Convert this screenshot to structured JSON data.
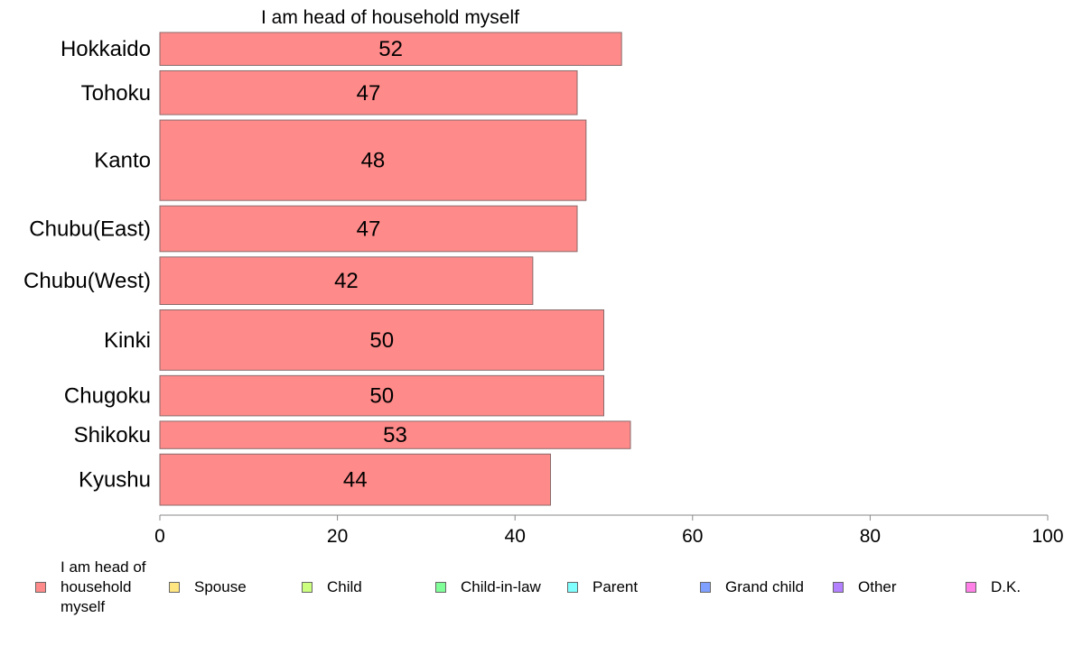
{
  "chart_data": {
    "type": "bar",
    "orientation": "horizontal",
    "title": "I am head of household myself",
    "categories": [
      "Hokkaido",
      "Tohoku",
      "Kanto",
      "Chubu(East)",
      "Chubu(West)",
      "Kinki",
      "Chugoku",
      "Shikoku",
      "Kyushu"
    ],
    "bar_widths_relative": [
      36,
      48,
      88,
      50,
      52,
      66,
      44,
      30,
      56
    ],
    "series": [
      {
        "name": "I am head of household myself",
        "values": [
          52,
          47,
          48,
          47,
          42,
          50,
          50,
          53,
          44
        ],
        "color": "#ff8a8a"
      }
    ],
    "data_labels": [
      "52",
      "47",
      "48",
      "47",
      "42",
      "50",
      "50",
      "53",
      "44"
    ],
    "xlim": [
      0,
      100
    ],
    "xticks": [
      0,
      20,
      40,
      60,
      80,
      100
    ],
    "grid": false,
    "legend_position": "bottom",
    "legend": [
      {
        "label": "I am head of household myself",
        "lines": [
          "I am head of",
          "household",
          "myself"
        ],
        "color": "#ff8a8a"
      },
      {
        "label": "Spouse",
        "lines": [
          "Spouse"
        ],
        "color": "#ffe680"
      },
      {
        "label": "Child",
        "lines": [
          "Child"
        ],
        "color": "#ccff80"
      },
      {
        "label": "Child-in-law",
        "lines": [
          "Child-in-law"
        ],
        "color": "#80ff99"
      },
      {
        "label": "Parent",
        "lines": [
          "Parent"
        ],
        "color": "#80ffff"
      },
      {
        "label": "Grand child",
        "lines": [
          "Grand child"
        ],
        "color": "#80a0ff"
      },
      {
        "label": "Other",
        "lines": [
          "Other"
        ],
        "color": "#b380ff"
      },
      {
        "label": "D.K.",
        "lines": [
          "D.K."
        ],
        "color": "#ff80e6"
      }
    ]
  }
}
